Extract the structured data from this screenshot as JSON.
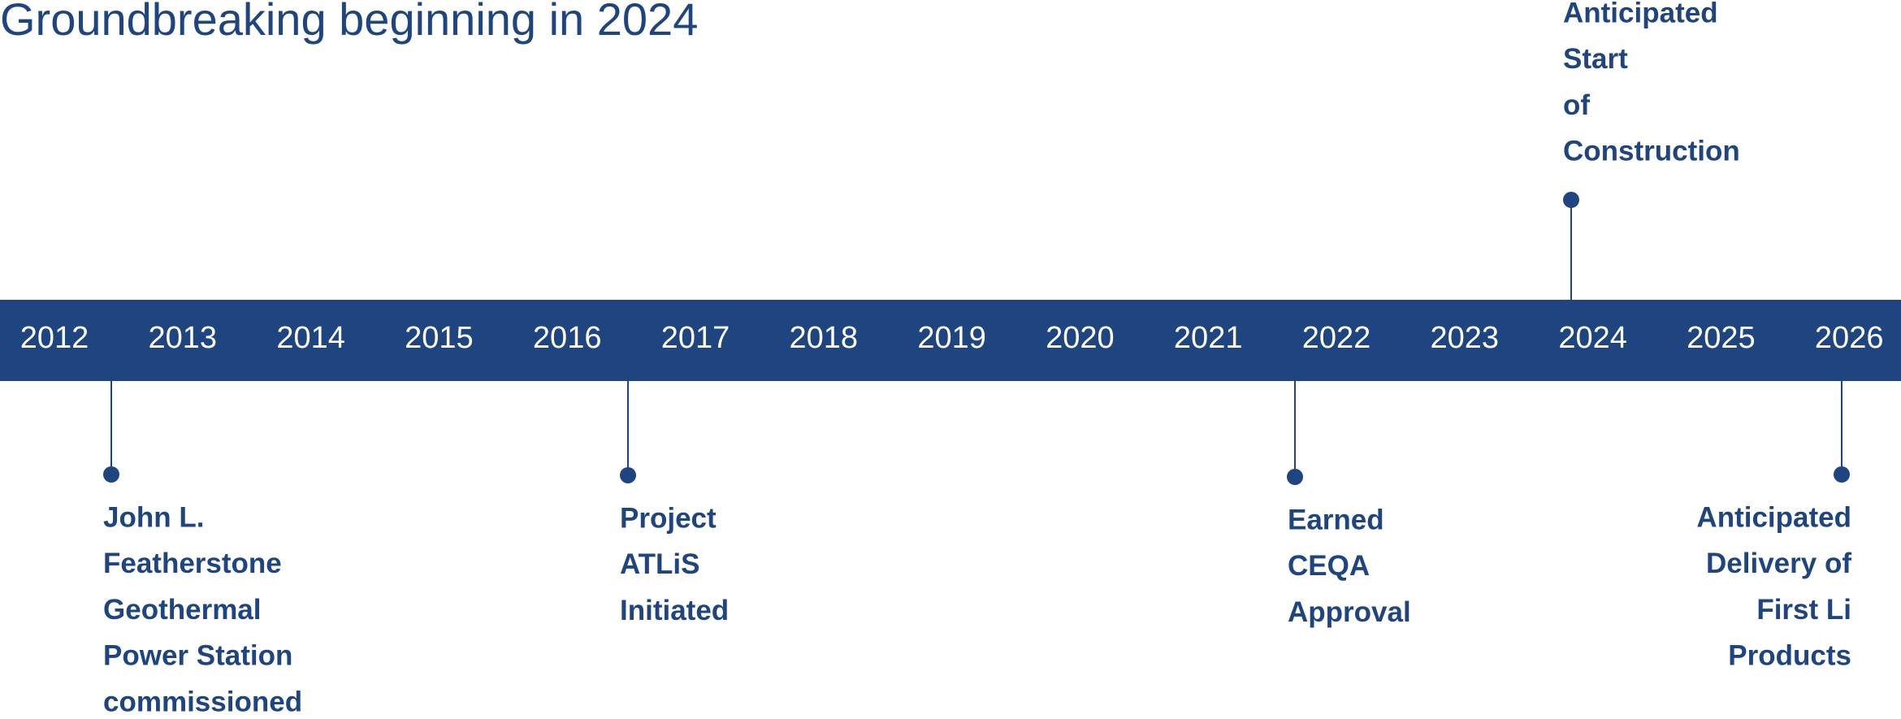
{
  "title": "Groundbreaking beginning in 2024",
  "years": [
    "2012",
    "2013",
    "2014",
    "2015",
    "2016",
    "2017",
    "2018",
    "2019",
    "2020",
    "2021",
    "2022",
    "2023",
    "2024",
    "2025",
    "2026"
  ],
  "events": [
    {
      "lines": [
        "John L.",
        "Featherstone",
        "Geothermal",
        "Power Station",
        "commissioned"
      ]
    },
    {
      "lines": [
        "Project",
        "ATLiS",
        "Initiated"
      ]
    },
    {
      "lines": [
        "Earned",
        "CEQA",
        "Approval"
      ]
    },
    {
      "lines": [
        "Anticipated",
        "Delivery of",
        "First Li",
        "Products"
      ]
    },
    {
      "lines": [
        "Anticipated",
        "Start",
        "of",
        "Construction"
      ]
    }
  ]
}
